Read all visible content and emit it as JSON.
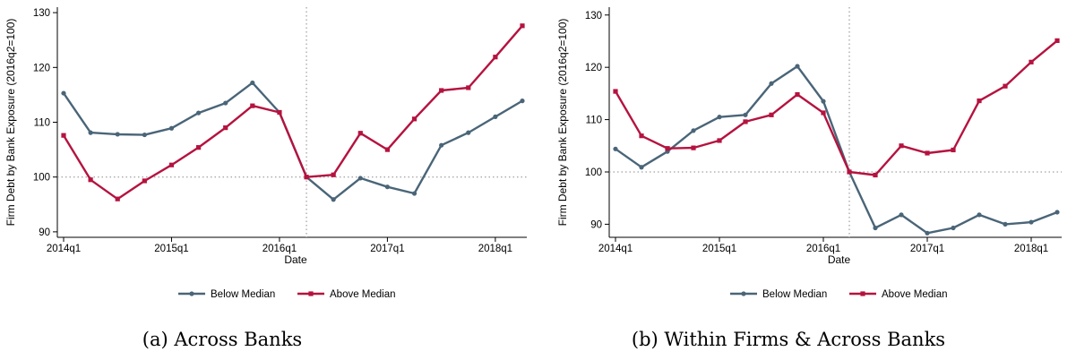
{
  "chart_data": [
    {
      "type": "line",
      "caption": "(a) Across Banks",
      "xlabel": "Date",
      "ylabel": "Firm Debt by Bank Exposure (2016q2=100)",
      "x": [
        "2014q1",
        "2014q2",
        "2014q3",
        "2014q4",
        "2015q1",
        "2015q2",
        "2015q3",
        "2015q4",
        "2016q1",
        "2016q2",
        "2016q3",
        "2016q4",
        "2017q1",
        "2017q2",
        "2017q3",
        "2017q4",
        "2018q1",
        "2018q2"
      ],
      "x_ticks": [
        "2014q1",
        "2015q1",
        "2016q1",
        "2017q1",
        "2018q1"
      ],
      "ylim": [
        89,
        131
      ],
      "y_ticks": [
        90,
        100,
        110,
        120,
        130
      ],
      "reference_lines": {
        "vertical_at": "2016q2",
        "horizontal_at": 100
      },
      "legend_position": "bottom-center",
      "series": [
        {
          "name": "Below Median",
          "color": "#4a6578",
          "values": [
            115.3,
            108.1,
            107.8,
            107.7,
            108.9,
            111.7,
            113.5,
            117.2,
            111.8,
            100.0,
            95.9,
            99.8,
            98.2,
            97.0,
            105.8,
            108.1,
            111.0,
            113.9
          ]
        },
        {
          "name": "Above Median",
          "color": "#b5133f",
          "values": [
            107.6,
            99.5,
            96.0,
            99.3,
            102.2,
            105.4,
            109.0,
            113.0,
            111.8,
            100.0,
            100.4,
            108.0,
            105.0,
            110.6,
            115.8,
            116.3,
            121.9,
            127.6
          ]
        }
      ]
    },
    {
      "type": "line",
      "caption": "(b) Within Firms & Across Banks",
      "xlabel": "Date",
      "ylabel": "Firm Debt by Bank Exposure (2016q2=100)",
      "x": [
        "2014q1",
        "2014q2",
        "2014q3",
        "2014q4",
        "2015q1",
        "2015q2",
        "2015q3",
        "2015q4",
        "2016q1",
        "2016q2",
        "2016q3",
        "2016q4",
        "2017q1",
        "2017q2",
        "2017q3",
        "2017q4",
        "2018q1",
        "2018q2"
      ],
      "x_ticks": [
        "2014q1",
        "2015q1",
        "2016q1",
        "2017q1",
        "2018q1"
      ],
      "ylim": [
        87.5,
        131.5
      ],
      "y_ticks": [
        90,
        100,
        110,
        120,
        130
      ],
      "reference_lines": {
        "vertical_at": "2016q2",
        "horizontal_at": 100
      },
      "legend_position": "bottom-center",
      "series": [
        {
          "name": "Below Median",
          "color": "#4a6578",
          "values": [
            104.4,
            100.9,
            103.9,
            107.9,
            110.5,
            110.9,
            116.9,
            120.2,
            113.5,
            100.0,
            89.3,
            91.8,
            88.3,
            89.3,
            91.8,
            90.0,
            90.4,
            92.3
          ]
        },
        {
          "name": "Above Median",
          "color": "#b5133f",
          "values": [
            115.4,
            106.9,
            104.5,
            104.6,
            106.0,
            109.6,
            110.9,
            114.8,
            111.3,
            100.0,
            99.4,
            105.0,
            103.6,
            104.2,
            113.6,
            116.4,
            121.0,
            125.1
          ]
        }
      ]
    }
  ]
}
